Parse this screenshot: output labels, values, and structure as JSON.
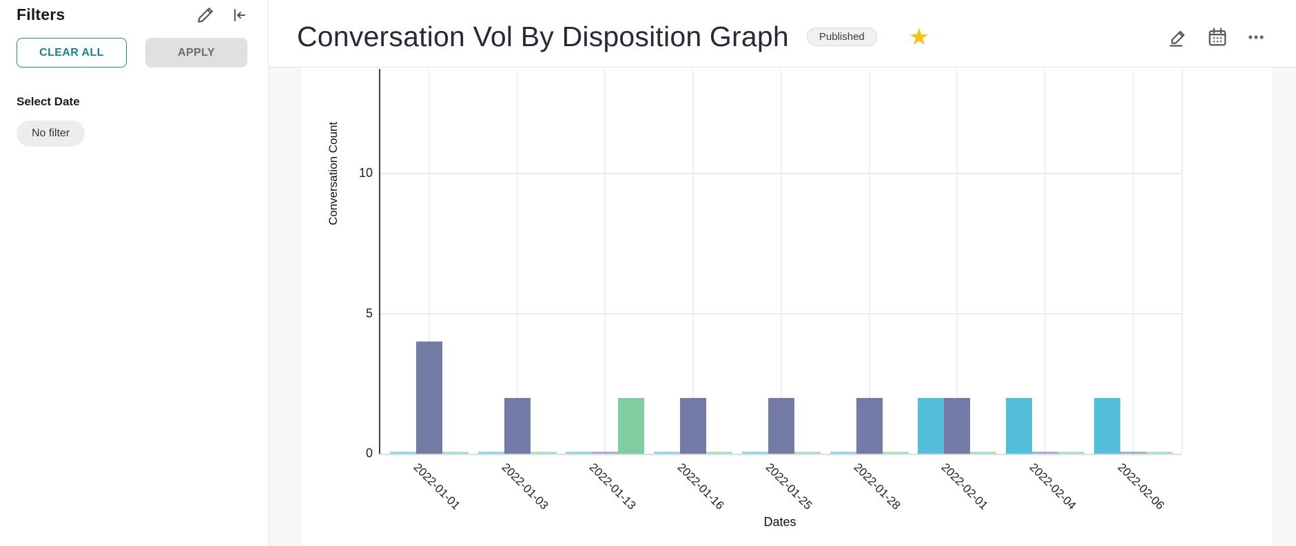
{
  "sidebar": {
    "title": "Filters",
    "clear_all_label": "CLEAR ALL",
    "apply_label": "APPLY",
    "select_date_label": "Select Date",
    "no_filter_label": "No filter",
    "icons": {
      "edit": "pencil-icon",
      "collapse": "collapse-left-icon"
    }
  },
  "header": {
    "title": "Conversation Vol By Disposition Graph",
    "status_badge": "Published",
    "favorite_icon": "star-icon",
    "favorite_glyph": "★",
    "favorite_color": "#f6c21a",
    "action_icons": [
      "edit-pencil-icon",
      "calendar-icon",
      "more-options-icon"
    ]
  },
  "colors": {
    "accent_teal": "#1d7e8e",
    "bar_teal": "#54bfd9",
    "bar_purple": "#747aa6",
    "bar_green": "#7fcda0",
    "main_background": "#f7f7f7"
  },
  "chart_data": {
    "type": "bar",
    "title": "",
    "xlabel": "Dates",
    "ylabel": "Conversation Count",
    "categories": [
      "2022-01-01",
      "2022-01-03",
      "2022-01-13",
      "2022-01-16",
      "2022-01-25",
      "2022-01-28",
      "2022-02-01",
      "2022-02-04",
      "2022-02-06"
    ],
    "series": [
      {
        "name": "teal-series",
        "color": "#54bfd9",
        "values": [
          0,
          0,
          0,
          0,
          0,
          0,
          2,
          2,
          2
        ]
      },
      {
        "name": "purple-series",
        "color": "#747aa6",
        "values": [
          4,
          2,
          0,
          2,
          2,
          2,
          2,
          0,
          0
        ]
      },
      {
        "name": "green-series",
        "color": "#7fcda0",
        "values": [
          0,
          0,
          2,
          0,
          0,
          0,
          0,
          0,
          0
        ]
      }
    ],
    "yticks": [
      0,
      5,
      10
    ],
    "ylim": [
      0,
      13.7
    ],
    "grid": true,
    "legend": "none"
  }
}
